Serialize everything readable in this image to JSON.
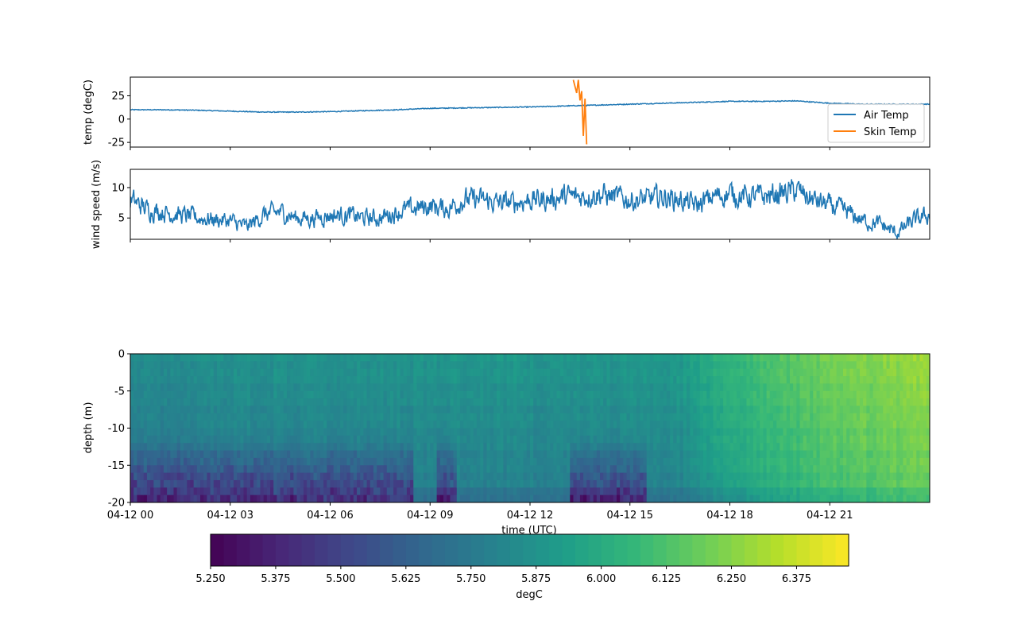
{
  "colors": {
    "air_temp": "#1f77b4",
    "skin_temp": "#ff7f0e",
    "axis": "#000000",
    "legend_border": "#cccccc",
    "viridis": [
      "#440154",
      "#482878",
      "#3e4989",
      "#31688e",
      "#26828e",
      "#1f9e89",
      "#35b779",
      "#6ece58",
      "#b5de2b",
      "#fde725"
    ]
  },
  "chart_data": [
    {
      "id": "temp",
      "type": "line",
      "ylabel": "temp (degC)",
      "ylim": [
        -30,
        45
      ],
      "yticks": [
        25,
        0,
        -25
      ],
      "x_range_hours": [
        0,
        24
      ],
      "series": [
        {
          "name": "Air Temp",
          "x": [
            0,
            1,
            2,
            3,
            4,
            5,
            6,
            7,
            8,
            9,
            10,
            11,
            12,
            13,
            14,
            15,
            16,
            17,
            18,
            19,
            20,
            21,
            22,
            23,
            24
          ],
          "y": [
            10,
            10,
            9.5,
            8.5,
            7.5,
            7.5,
            8,
            9,
            10,
            11.5,
            12,
            12.5,
            13,
            14,
            15,
            16,
            17,
            18,
            19,
            19,
            19.5,
            17,
            16,
            16,
            16
          ]
        },
        {
          "name": "Skin Temp",
          "x": [
            13.3,
            13.35,
            13.4,
            13.45,
            13.5,
            13.55,
            13.6,
            13.65,
            13.7
          ],
          "y": [
            42,
            35,
            28,
            42,
            20,
            30,
            -18,
            22,
            -27
          ]
        }
      ],
      "legend": "lower-right"
    },
    {
      "id": "wind",
      "type": "line",
      "ylabel": "wind speed (m/s)",
      "ylim": [
        1.5,
        13
      ],
      "yticks": [
        10,
        5
      ],
      "x_range_hours": [
        0,
        24
      ],
      "series": [
        {
          "name": "wind",
          "x": [
            0,
            0.5,
            1,
            1.5,
            2,
            2.5,
            3,
            3.5,
            4,
            4.5,
            5,
            5.5,
            6,
            6.5,
            7,
            7.5,
            8,
            8.5,
            9,
            9.5,
            10,
            10.5,
            11,
            11.5,
            12,
            12.5,
            13,
            13.5,
            14,
            14.5,
            15,
            15.5,
            16,
            16.5,
            17,
            17.5,
            18,
            18.5,
            19,
            19.5,
            20,
            20.5,
            21,
            21.5,
            22,
            22.5,
            23,
            23.5,
            24
          ],
          "y": [
            8,
            6.5,
            6,
            5.5,
            5,
            4.8,
            4.5,
            3.5,
            5.5,
            6,
            5,
            5,
            5.5,
            5.5,
            5,
            5,
            6,
            6.5,
            7,
            6.5,
            8,
            8,
            7.5,
            7.5,
            8,
            8,
            8.5,
            8.5,
            9,
            8.5,
            8,
            8,
            8.5,
            8,
            7,
            8.5,
            9,
            8.5,
            8.5,
            9,
            9.5,
            8,
            7,
            6,
            4.5,
            4,
            2.5,
            4.5,
            5.5
          ]
        }
      ]
    },
    {
      "id": "depth",
      "type": "heatmap",
      "ylabel": "depth (m)",
      "xlabel": "time (UTC)",
      "ylim": [
        -20,
        0
      ],
      "yticks": [
        0,
        -5,
        -10,
        -15,
        -20
      ],
      "x_range_hours": [
        0,
        24
      ],
      "xticks": [
        "04-12 00",
        "04-12 03",
        "04-12 06",
        "04-12 09",
        "04-12 12",
        "04-12 15",
        "04-12 18",
        "04-12 21"
      ],
      "colorbar": {
        "label": "degC",
        "range": [
          5.25,
          6.475
        ],
        "ticks": [
          "5.250",
          "5.375",
          "5.500",
          "5.625",
          "5.750",
          "5.875",
          "6.000",
          "6.125",
          "6.250",
          "6.375"
        ]
      }
    }
  ]
}
